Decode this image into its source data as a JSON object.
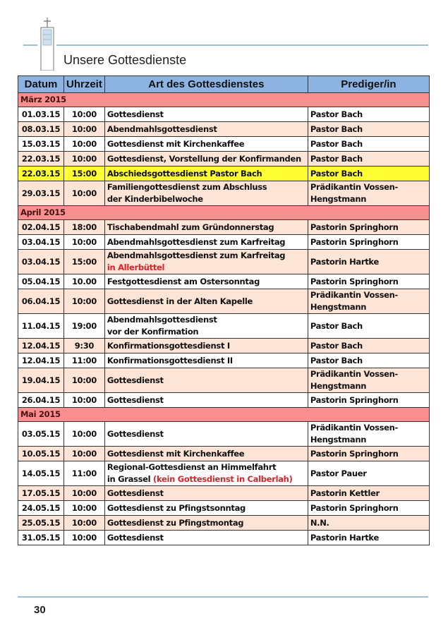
{
  "header": {
    "title": "Unsere Gottesdienste"
  },
  "colors": {
    "header": "#8db3e2",
    "month": "#f98f8f",
    "white": "#ffffff",
    "peach": "#fce4d6",
    "yellow": "#ffff33",
    "highlight_text": "#e0202a"
  },
  "table": {
    "columns": [
      "Datum",
      "Uhrzeit",
      "Art des Gottesdienstes",
      "Prediger/in"
    ],
    "sections": [
      {
        "month": "März 2015",
        "rows": [
          {
            "date": "01.03.15",
            "time": "10:00",
            "art": [
              {
                "text": "Gottesdienst"
              }
            ],
            "prediger": [
              "Pastor Bach"
            ],
            "bg": "white"
          },
          {
            "date": "08.03.15",
            "time": "10:00",
            "art": [
              {
                "text": "Abendmahlsgottesdienst"
              }
            ],
            "prediger": [
              "Pastor Bach"
            ],
            "bg": "peach"
          },
          {
            "date": "15.03.15",
            "time": "10:00",
            "art": [
              {
                "text": "Gottesdienst mit Kirchenkaffee"
              }
            ],
            "prediger": [
              "Pastor Bach"
            ],
            "bg": "white"
          },
          {
            "date": "22.03.15",
            "time": "10:00",
            "art": [
              {
                "text": "Gottesdienst, Vorstellung der Konfirmanden"
              }
            ],
            "prediger": [
              "Pastor Bach"
            ],
            "bg": "peach"
          },
          {
            "date": "22.03.15",
            "time": "15:00",
            "art": [
              {
                "text": "Abschiedsgottesdienst Pastor Bach"
              }
            ],
            "prediger": [
              "Pastor Bach"
            ],
            "bg": "yellow"
          },
          {
            "date": "29.03.15",
            "time": "10:00",
            "art": [
              {
                "text": "Familiengottesdienst zum Abschluss"
              },
              {
                "text": "der Kinderbibelwoche"
              }
            ],
            "prediger": [
              "Prädikantin Vossen-",
              "Hengstmann"
            ],
            "bg": "peach"
          }
        ]
      },
      {
        "month": "April 2015",
        "rows": [
          {
            "date": "02.04.15",
            "time": "18:00",
            "art": [
              {
                "text": "Tischabendmahl zum Gründonnerstag"
              }
            ],
            "prediger": [
              "Pastorin Springhorn"
            ],
            "bg": "peach"
          },
          {
            "date": "03.04.15",
            "time": "10:00",
            "art": [
              {
                "text": "Abendmahlsgottesdienst zum Karfreitag"
              }
            ],
            "prediger": [
              "Pastorin Springhorn"
            ],
            "bg": "white"
          },
          {
            "date": "03.04.15",
            "time": "15:00",
            "art": [
              {
                "text": "Abendmahlsgottesdienst zum Karfreitag"
              },
              {
                "text": "in Allerbüttel",
                "red": true
              }
            ],
            "prediger": [
              "Pastorin Hartke"
            ],
            "bg": "peach"
          },
          {
            "date": "05.04.15",
            "time": "10.00",
            "art": [
              {
                "text": "Festgottesdienst am Ostersonntag"
              }
            ],
            "prediger": [
              "Pastorin Springhorn"
            ],
            "bg": "white"
          },
          {
            "date": "06.04.15",
            "time": "10:00",
            "art": [
              {
                "text": "Gottesdienst in der Alten Kapelle"
              }
            ],
            "prediger": [
              "Prädikantin Vossen-",
              "Hengstmann"
            ],
            "bg": "peach"
          },
          {
            "date": "11.04.15",
            "time": "19:00",
            "art": [
              {
                "text": "Abendmahlsgottesdienst"
              },
              {
                "text": "vor der Konfirmation"
              }
            ],
            "prediger": [
              "Pastor Bach"
            ],
            "bg": "white"
          },
          {
            "date": "12.04.15",
            "time": "9:30",
            "art": [
              {
                "text": "Konfirmationsgottesdienst I"
              }
            ],
            "prediger": [
              "Pastor Bach"
            ],
            "bg": "peach"
          },
          {
            "date": "12.04.15",
            "time": "11:00",
            "art": [
              {
                "text": "Konfirmationsgottesdienst II"
              }
            ],
            "prediger": [
              "Pastor Bach"
            ],
            "bg": "white"
          },
          {
            "date": "19.04.15",
            "time": "10:00",
            "art": [
              {
                "text": "Gottesdienst"
              }
            ],
            "prediger": [
              "Prädikantin Vossen-",
              "Hengstmann"
            ],
            "bg": "peach"
          },
          {
            "date": "26.04.15",
            "time": "10:00",
            "art": [
              {
                "text": "Gottesdienst"
              }
            ],
            "prediger": [
              "Pastorin Springhorn"
            ],
            "bg": "white"
          }
        ]
      },
      {
        "month": "Mai 2015",
        "rows": [
          {
            "date": "03.05.15",
            "time": "10:00",
            "art": [
              {
                "text": "Gottesdienst"
              }
            ],
            "prediger": [
              "Prädikantin Vossen-",
              "Hengstmann"
            ],
            "bg": "white"
          },
          {
            "date": "10.05.15",
            "time": "10:00",
            "art": [
              {
                "text": "Gottesdienst mit Kirchenkaffee"
              }
            ],
            "prediger": [
              "Pastorin Springhorn"
            ],
            "bg": "peach"
          },
          {
            "date": "14.05.15",
            "time": "11:00",
            "art": [
              {
                "text": "Regional-Gottesdienst an Himmelfahrt"
              },
              {
                "text": "in Grassel "
              },
              {
                "text": "(kein Gottesdienst in Calberlah)",
                "red": true,
                "inline": true
              }
            ],
            "prediger": [
              "Pastor Pauer"
            ],
            "bg": "white"
          },
          {
            "date": "17.05.15",
            "time": "10:00",
            "art": [
              {
                "text": "Gottesdienst"
              }
            ],
            "prediger": [
              "Pastorin Kettler"
            ],
            "bg": "peach"
          },
          {
            "date": "24.05.15",
            "time": "10:00",
            "art": [
              {
                "text": "Gottesdienst zu Pfingstsonntag"
              }
            ],
            "prediger": [
              "Pastorin Springhorn"
            ],
            "bg": "white"
          },
          {
            "date": "25.05.15",
            "time": "10:00",
            "art": [
              {
                "text": "Gottesdienst zu Pfingstmontag"
              }
            ],
            "prediger": [
              "N.N."
            ],
            "bg": "peach"
          },
          {
            "date": "31.05.15",
            "time": "10:00",
            "art": [
              {
                "text": "Gottesdienst"
              }
            ],
            "prediger": [
              "Pastorin Hartke"
            ],
            "bg": "white"
          }
        ]
      }
    ]
  },
  "footer": {
    "page_number": "30"
  }
}
